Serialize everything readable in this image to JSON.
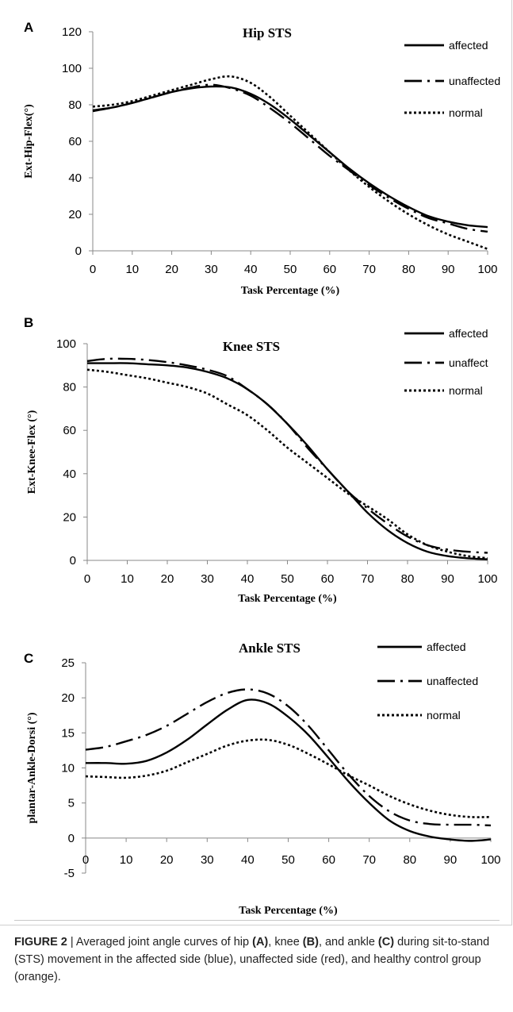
{
  "chart_data": [
    {
      "type": "line",
      "panel": "A",
      "title": "Hip  STS",
      "xlabel": "Task Percentage (%)",
      "ylabel": "Ext-Hip-Flex(°)",
      "xlim": [
        0,
        100
      ],
      "ylim": [
        0,
        120
      ],
      "xticks": [
        0,
        10,
        20,
        30,
        40,
        50,
        60,
        70,
        80,
        90,
        100
      ],
      "yticks": [
        0,
        20,
        40,
        60,
        80,
        100,
        120
      ],
      "grid": false,
      "legend": "top-right",
      "series": [
        {
          "name": "affected",
          "style": "solid",
          "x": [
            0,
            5,
            10,
            15,
            20,
            25,
            30,
            35,
            40,
            45,
            50,
            55,
            60,
            65,
            70,
            75,
            80,
            85,
            90,
            95,
            100
          ],
          "y": [
            77,
            78.5,
            81,
            84,
            87,
            89,
            90,
            89.5,
            86,
            80,
            72,
            63,
            54,
            45,
            37,
            30,
            24,
            19,
            16,
            14,
            13
          ]
        },
        {
          "name": "unaffected",
          "style": "dashdot",
          "x": [
            0,
            5,
            10,
            15,
            20,
            25,
            30,
            35,
            40,
            45,
            50,
            55,
            60,
            65,
            70,
            75,
            80,
            85,
            90,
            95,
            100
          ],
          "y": [
            76.5,
            78.5,
            81,
            84,
            87,
            89.5,
            91,
            89,
            85,
            78,
            70,
            61,
            52,
            44,
            36,
            29,
            23,
            18,
            15,
            12,
            10.5
          ]
        },
        {
          "name": "normal",
          "style": "dotted",
          "x": [
            0,
            5,
            10,
            15,
            20,
            25,
            30,
            35,
            40,
            45,
            50,
            55,
            60,
            65,
            70,
            75,
            80,
            85,
            90,
            95,
            100
          ],
          "y": [
            79,
            80,
            82,
            85,
            88,
            91,
            94,
            95.5,
            92,
            84,
            74,
            64,
            54,
            44,
            35,
            27,
            20,
            14,
            9,
            5,
            1
          ]
        }
      ]
    },
    {
      "type": "line",
      "panel": "B",
      "title": "Knee  STS",
      "xlabel": "Task Percentage (%)",
      "ylabel": "Ext-Knee-Flex  (°)",
      "xlim": [
        0,
        100
      ],
      "ylim": [
        0,
        100
      ],
      "xticks": [
        0,
        10,
        20,
        30,
        40,
        50,
        60,
        70,
        80,
        90,
        100
      ],
      "yticks": [
        0,
        20,
        40,
        60,
        80,
        100
      ],
      "grid": false,
      "legend": "top-right",
      "series": [
        {
          "name": "affected",
          "style": "solid",
          "x": [
            0,
            5,
            10,
            15,
            20,
            25,
            30,
            35,
            40,
            45,
            50,
            55,
            60,
            65,
            70,
            75,
            80,
            85,
            90,
            95,
            100
          ],
          "y": [
            91,
            91,
            91,
            90.5,
            90,
            89,
            87,
            84,
            79,
            72,
            63,
            53,
            42,
            32,
            22,
            14,
            8,
            4,
            2,
            1,
            0.5
          ]
        },
        {
          "name": "unaffect",
          "style": "dashdot",
          "x": [
            0,
            5,
            10,
            15,
            20,
            25,
            30,
            35,
            40,
            45,
            50,
            55,
            60,
            65,
            70,
            75,
            80,
            85,
            90,
            95,
            100
          ],
          "y": [
            92,
            93,
            93,
            92.5,
            91.5,
            90,
            88,
            85,
            79,
            72,
            63,
            52,
            42,
            32,
            24,
            17,
            11,
            7,
            5,
            4,
            3.5
          ]
        },
        {
          "name": "normal",
          "style": "dotted",
          "x": [
            0,
            5,
            10,
            15,
            20,
            25,
            30,
            35,
            40,
            45,
            50,
            55,
            60,
            65,
            70,
            75,
            80,
            85,
            90,
            95,
            100
          ],
          "y": [
            88,
            87,
            85.5,
            84,
            82,
            80,
            77,
            72,
            67,
            60,
            52,
            45,
            38,
            31,
            25,
            19,
            12,
            7,
            4,
            2,
            1
          ]
        }
      ]
    },
    {
      "type": "line",
      "panel": "C",
      "title": "Ankle STS",
      "xlabel": "Task Percentage (%)",
      "ylabel": "plantar-Ankle-Dorsi  (°)",
      "xlim": [
        0,
        100
      ],
      "ylim": [
        -5,
        25
      ],
      "xticks": [
        0,
        10,
        20,
        30,
        40,
        50,
        60,
        70,
        80,
        90,
        100
      ],
      "yticks": [
        -5,
        0,
        5,
        10,
        15,
        20,
        25
      ],
      "grid": false,
      "legend": "top-right",
      "series": [
        {
          "name": "affected",
          "style": "solid",
          "x": [
            0,
            5,
            10,
            15,
            20,
            25,
            30,
            35,
            40,
            45,
            50,
            55,
            60,
            65,
            70,
            75,
            80,
            85,
            90,
            95,
            100
          ],
          "y": [
            10.7,
            10.7,
            10.6,
            11,
            12.2,
            14,
            16.2,
            18.3,
            19.7,
            19.2,
            17.3,
            14.7,
            11.4,
            8,
            5,
            2.5,
            1,
            0.2,
            -0.2,
            -0.4,
            -0.2
          ]
        },
        {
          "name": "unaffected",
          "style": "dashdot",
          "x": [
            0,
            5,
            10,
            15,
            20,
            25,
            30,
            35,
            40,
            45,
            50,
            55,
            60,
            65,
            70,
            75,
            80,
            85,
            90,
            95,
            100
          ],
          "y": [
            12.6,
            13,
            13.8,
            14.7,
            16,
            17.7,
            19.4,
            20.7,
            21.2,
            20.6,
            18.8,
            16,
            12.5,
            9,
            6,
            3.8,
            2.5,
            2,
            1.9,
            1.9,
            1.8
          ]
        },
        {
          "name": "normal",
          "style": "dotted",
          "x": [
            0,
            5,
            10,
            15,
            20,
            25,
            30,
            35,
            40,
            45,
            50,
            55,
            60,
            65,
            70,
            75,
            80,
            85,
            90,
            95,
            100
          ],
          "y": [
            8.8,
            8.7,
            8.6,
            8.9,
            9.6,
            10.8,
            12,
            13.2,
            13.9,
            14,
            13.3,
            12,
            10.5,
            8.9,
            7.5,
            6,
            4.8,
            3.9,
            3.3,
            3,
            3
          ]
        }
      ]
    }
  ],
  "caption": {
    "label": "FIGURE 2",
    "separator": " | ",
    "segments": [
      {
        "text": "Averaged joint angle curves of hip ",
        "bold": false
      },
      {
        "text": "(A)",
        "bold": true
      },
      {
        "text": ", knee ",
        "bold": false
      },
      {
        "text": "(B)",
        "bold": true
      },
      {
        "text": ", and ankle ",
        "bold": false
      },
      {
        "text": "(C)",
        "bold": true
      },
      {
        "text": " during sit-to-stand (STS) movement in the affected side (blue), unaffected side (red), and healthy control group (orange).",
        "bold": false
      }
    ]
  }
}
